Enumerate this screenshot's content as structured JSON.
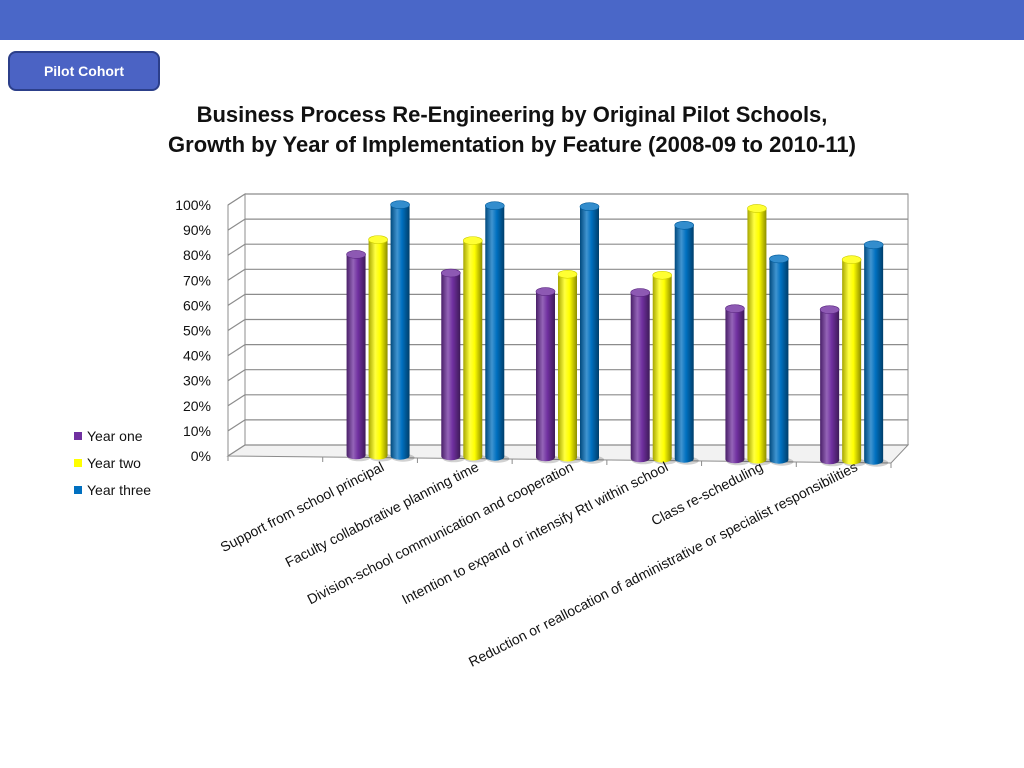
{
  "header": {
    "badge_label": "Pilot Cohort"
  },
  "chart_data": {
    "type": "bar",
    "title_line1": "Business Process Re-Engineering by Original Pilot Schools,",
    "title_line2": "Growth by Year of Implementation by Feature (2008-09 to 2010-11)",
    "categories": [
      "Support from school principal",
      "Faculty collaborative planning time",
      "Division-school communication and cooperation",
      "Intention to expand or intensify RtI within school",
      "Class re-scheduling",
      "Reduction or reallocation of administrative or specialist responsibilities"
    ],
    "series": [
      {
        "name": "Year one",
        "color": "#7030a0",
        "values": [
          80,
          73,
          66,
          66,
          60,
          60
        ]
      },
      {
        "name": "Year two",
        "color": "#ffff00",
        "values": [
          86,
          86,
          73,
          73,
          100,
          80
        ]
      },
      {
        "name": "Year three",
        "color": "#0070c0",
        "values": [
          100,
          100,
          100,
          93,
          80,
          86
        ]
      }
    ],
    "y_ticks": [
      "0%",
      "10%",
      "20%",
      "30%",
      "40%",
      "50%",
      "60%",
      "70%",
      "80%",
      "90%",
      "100%"
    ],
    "ylim": [
      0,
      100
    ],
    "grid": true,
    "legend_position": "left"
  }
}
